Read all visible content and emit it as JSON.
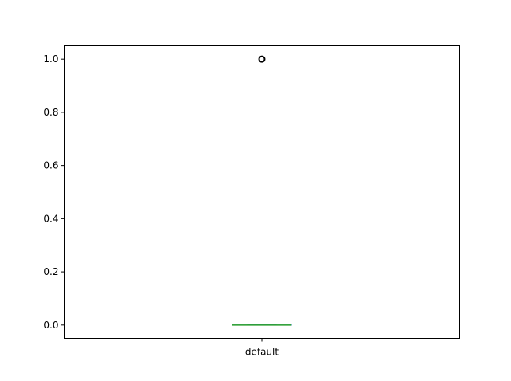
{
  "chart_data": {
    "type": "box",
    "categories": [
      "default"
    ],
    "series": [
      {
        "category": "default",
        "whisker_low": 0,
        "q1": 0,
        "median": 0,
        "q3": 0,
        "whisker_high": 0,
        "outliers": [
          1.0
        ]
      }
    ],
    "title": "",
    "xlabel": "",
    "ylabel": "",
    "ylim": [
      -0.05,
      1.05
    ],
    "yticks": [
      0.0,
      0.2,
      0.4,
      0.6,
      0.8,
      1.0
    ],
    "ytick_labels": [
      "0.0",
      "0.2",
      "0.4",
      "0.6",
      "0.8",
      "1.0"
    ],
    "grid": false,
    "colors": {
      "box": "#1f77b4",
      "median": "#2ca02c",
      "flier": "#000000",
      "axes": "#000000"
    }
  }
}
